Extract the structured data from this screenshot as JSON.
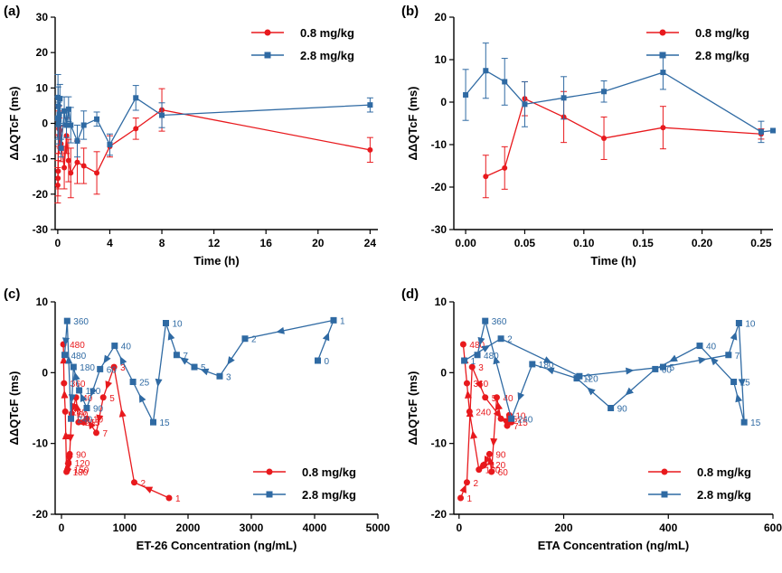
{
  "colors": {
    "red": "#e8191d",
    "blue": "#2f6aa3"
  },
  "chart_data": [
    {
      "panel": "(a)",
      "type": "line",
      "xlabel": "Time (h)",
      "ylabel": "ΔΔQTcF (ms)",
      "xlim": [
        -0.2,
        24.6
      ],
      "ylim": [
        -30,
        30
      ],
      "xticks": [
        0,
        4,
        8,
        12,
        16,
        20,
        24
      ],
      "yticks": [
        -30,
        -20,
        -10,
        0,
        10,
        20,
        30
      ],
      "legend_position": "top-right",
      "series": [
        {
          "name": "0.8 mg/kg",
          "color": "red",
          "marker": "circle",
          "x": [
            0,
            0.017,
            0.033,
            0.05,
            0.083,
            0.117,
            0.167,
            0.25,
            0.5,
            0.67,
            0.83,
            1,
            1.5,
            2,
            3,
            4,
            6,
            8,
            24
          ],
          "y": [
            -17.5,
            -15.5,
            -13.5,
            0.8,
            -1.5,
            -3.5,
            -2.0,
            -5.8,
            -12.5,
            -3.5,
            -10.5,
            -14,
            -11,
            -12,
            -14,
            -6.5,
            -1.5,
            3.8,
            -7.5
          ],
          "err": [
            5,
            5,
            5,
            4,
            5,
            5,
            5,
            5,
            6,
            5,
            6,
            7,
            6,
            5,
            6,
            3,
            3,
            6,
            3.5
          ]
        },
        {
          "name": "2.8 mg/kg",
          "color": "blue",
          "marker": "square",
          "x": [
            0,
            0.017,
            0.033,
            0.05,
            0.083,
            0.117,
            0.167,
            0.25,
            0.5,
            0.67,
            0.83,
            1,
            1.5,
            2,
            3,
            4,
            6,
            8,
            24
          ],
          "y": [
            1.5,
            7.3,
            4.8,
            -0.3,
            1.0,
            2.5,
            7.0,
            -7.0,
            3.5,
            -0.5,
            4.0,
            -0.5,
            -5.0,
            -0.5,
            1.2,
            -6.0,
            7.2,
            2.3,
            5.2
          ],
          "err": [
            6,
            6.5,
            5.5,
            5.5,
            5,
            2.5,
            4,
            2.5,
            4,
            3.5,
            3.5,
            5,
            4.5,
            4,
            2,
            3,
            3.5,
            3.5,
            2
          ]
        }
      ]
    },
    {
      "panel": "(b)",
      "type": "line",
      "xlabel": "Time (h)",
      "ylabel": "ΔΔQTcF (ms)",
      "xlim": [
        -0.01,
        0.26
      ],
      "ylim": [
        -30,
        20
      ],
      "xticks": [
        0,
        0.05,
        0.1,
        0.15,
        0.2,
        0.25
      ],
      "xtick_labels": [
        "0.00",
        "0.05",
        "0.10",
        "0.15",
        "0.20",
        "0.25"
      ],
      "yticks": [
        -30,
        -20,
        -10,
        0,
        10,
        20
      ],
      "legend_position": "top-right",
      "series": [
        {
          "name": "0.8 mg/kg",
          "color": "red",
          "marker": "circle",
          "x": [
            0.017,
            0.033,
            0.05,
            0.083,
            0.117,
            0.167,
            0.25
          ],
          "y": [
            -17.5,
            -15.5,
            0.8,
            -3.5,
            -8.5,
            -6.0,
            -7.5
          ],
          "err": [
            5,
            5,
            4,
            6,
            5,
            5,
            1.2
          ]
        },
        {
          "name": "2.8 mg/kg",
          "color": "blue",
          "marker": "square",
          "x": [
            0,
            0.017,
            0.033,
            0.05,
            0.083,
            0.117,
            0.167,
            0.25,
            0.26
          ],
          "y": [
            1.7,
            7.4,
            4.8,
            -0.5,
            1.0,
            2.5,
            7.0,
            -7.0,
            -6.7
          ],
          "err": [
            6,
            6.5,
            5.5,
            5.3,
            5,
            2.5,
            4,
            2.5,
            0
          ]
        }
      ]
    },
    {
      "panel": "(c)",
      "type": "scatter",
      "xlabel": "ET-26 Concentration (ng/mL)",
      "ylabel": "ΔΔQTcF (ms)",
      "xlim": [
        -100,
        5000
      ],
      "ylim": [
        -20,
        10
      ],
      "xticks": [
        0,
        1000,
        2000,
        3000,
        4000,
        5000
      ],
      "yticks": [
        -20,
        -10,
        0,
        10
      ],
      "legend_position": "bottom-right",
      "series": [
        {
          "name": "0.8 mg/kg",
          "color": "red",
          "marker": "circle",
          "points": [
            {
              "label": "1",
              "x": 1700,
              "y": -17.7
            },
            {
              "label": "2",
              "x": 1150,
              "y": -15.5
            },
            {
              "label": "3",
              "x": 830,
              "y": 0.8
            },
            {
              "label": "5",
              "x": 660,
              "y": -3.5
            },
            {
              "label": "7",
              "x": 550,
              "y": -8.5
            },
            {
              "label": "10",
              "x": 400,
              "y": -6.5
            },
            {
              "label": "15",
              "x": 350,
              "y": -7.0
            },
            {
              "label": "25",
              "x": 270,
              "y": -7.0
            },
            {
              "label": "40",
              "x": 230,
              "y": -3.5
            },
            {
              "label": "60",
              "x": 160,
              "y": -5.8
            },
            {
              "label": "90",
              "x": 130,
              "y": -11.5
            },
            {
              "label": "120",
              "x": 110,
              "y": -12.7
            },
            {
              "label": "150",
              "x": 95,
              "y": -13.7
            },
            {
              "label": "180",
              "x": 80,
              "y": -14.0
            },
            {
              "label": "240",
              "x": 60,
              "y": -5.5
            },
            {
              "label": "360",
              "x": 40,
              "y": -1.5
            },
            {
              "label": "480",
              "x": 30,
              "y": 4.0
            }
          ]
        },
        {
          "name": "2.8 mg/kg",
          "color": "blue",
          "marker": "square",
          "points": [
            {
              "label": "0",
              "x": 4050,
              "y": 1.7
            },
            {
              "label": "1",
              "x": 4300,
              "y": 7.4
            },
            {
              "label": "2",
              "x": 2900,
              "y": 4.8
            },
            {
              "label": "3",
              "x": 2500,
              "y": -0.5
            },
            {
              "label": "5",
              "x": 2100,
              "y": 0.8
            },
            {
              "label": "7",
              "x": 1820,
              "y": 2.5
            },
            {
              "label": "10",
              "x": 1650,
              "y": 7.0
            },
            {
              "label": "15",
              "x": 1450,
              "y": -7.0
            },
            {
              "label": "25",
              "x": 1130,
              "y": -1.3
            },
            {
              "label": "40",
              "x": 840,
              "y": 3.8
            },
            {
              "label": "60",
              "x": 610,
              "y": 0.5
            },
            {
              "label": "90",
              "x": 400,
              "y": -5.0
            },
            {
              "label": "120",
              "x": 280,
              "y": -2.5
            },
            {
              "label": "180",
              "x": 190,
              "y": 0.8
            },
            {
              "label": "240",
              "x": 150,
              "y": -6.5
            },
            {
              "label": "360",
              "x": 90,
              "y": 7.3
            },
            {
              "label": "480",
              "x": 50,
              "y": 2.5
            }
          ]
        }
      ]
    },
    {
      "panel": "(d)",
      "type": "scatter",
      "xlabel": "ETA Concentration (ng/mL)",
      "ylabel": "ΔΔQTcF (ms)",
      "xlim": [
        -10,
        600
      ],
      "ylim": [
        -20,
        10
      ],
      "xticks": [
        0,
        200,
        400,
        600
      ],
      "yticks": [
        -20,
        -10,
        0,
        10
      ],
      "legend_position": "bottom-right",
      "series": [
        {
          "name": "0.8 mg/kg",
          "color": "red",
          "marker": "circle",
          "points": [
            {
              "label": "1",
              "x": 3,
              "y": -17.7
            },
            {
              "label": "2",
              "x": 15,
              "y": -15.5
            },
            {
              "label": "3",
              "x": 25,
              "y": 0.8
            },
            {
              "label": "5",
              "x": 50,
              "y": -3.5
            },
            {
              "label": "7",
              "x": 92,
              "y": -7.5
            },
            {
              "label": "10",
              "x": 96,
              "y": -6.0
            },
            {
              "label": "15",
              "x": 100,
              "y": -7.0
            },
            {
              "label": "25",
              "x": 80,
              "y": -6.5
            },
            {
              "label": "40",
              "x": 72,
              "y": -3.5
            },
            {
              "label": "60",
              "x": 62,
              "y": -14.0
            },
            {
              "label": "90",
              "x": 58,
              "y": -11.5
            },
            {
              "label": "120",
              "x": 48,
              "y": -13.0
            },
            {
              "label": "180",
              "x": 38,
              "y": -13.7
            },
            {
              "label": "240",
              "x": 20,
              "y": -5.5
            },
            {
              "label": "360",
              "x": 15,
              "y": -1.5
            },
            {
              "label": "480",
              "x": 8,
              "y": 4.0
            }
          ]
        },
        {
          "name": "2.8 mg/kg",
          "color": "blue",
          "marker": "square",
          "points": [
            {
              "label": "1",
              "x": 10,
              "y": 1.7
            },
            {
              "label": "2",
              "x": 80,
              "y": 4.8
            },
            {
              "label": "3",
              "x": 230,
              "y": -0.5
            },
            {
              "label": "5",
              "x": 390,
              "y": 0.8
            },
            {
              "label": "7",
              "x": 515,
              "y": 2.5
            },
            {
              "label": "10",
              "x": 535,
              "y": 7.0
            },
            {
              "label": "15",
              "x": 545,
              "y": -7.0
            },
            {
              "label": "25",
              "x": 525,
              "y": -1.3
            },
            {
              "label": "40",
              "x": 460,
              "y": 3.8
            },
            {
              "label": "60",
              "x": 375,
              "y": 0.5
            },
            {
              "label": "90",
              "x": 290,
              "y": -5.0
            },
            {
              "label": "120",
              "x": 225,
              "y": -0.8
            },
            {
              "label": "180",
              "x": 140,
              "y": 1.2
            },
            {
              "label": "240",
              "x": 100,
              "y": -6.5
            },
            {
              "label": "360",
              "x": 50,
              "y": 7.3
            },
            {
              "label": "480",
              "x": 35,
              "y": 2.5
            }
          ]
        }
      ]
    }
  ]
}
